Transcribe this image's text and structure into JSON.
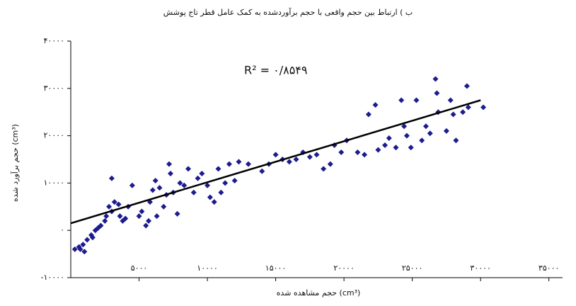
{
  "chart_data": {
    "type": "scatter",
    "title": "ب ) ارتباط بین حجم واقعی با حجم برآوردشده به کمک عامل قطر تاج پوشش",
    "x_label": "حجم مشاهده شده (cm³)",
    "y_label": "حجم برآورد شده (cm³)",
    "annotation": "R² = ۰/۸۵۴۹",
    "xlim": [
      0,
      36000
    ],
    "ylim": [
      -10000,
      40000
    ],
    "xticks": [
      {
        "value": 5000,
        "label": "۵۰۰۰"
      },
      {
        "value": 10000,
        "label": "۱۰۰۰۰"
      },
      {
        "value": 15000,
        "label": "۱۵۰۰۰"
      },
      {
        "value": 20000,
        "label": "۲۰۰۰۰"
      },
      {
        "value": 25000,
        "label": "۲۵۰۰۰"
      },
      {
        "value": 30000,
        "label": "۳۰۰۰۰"
      },
      {
        "value": 35000,
        "label": "۳۵۰۰۰"
      }
    ],
    "yticks": [
      {
        "value": -10000,
        "label": "-۱۰۰۰۰"
      },
      {
        "value": 0,
        "label": "۰"
      },
      {
        "value": 10000,
        "label": "۱۰۰۰۰"
      },
      {
        "value": 20000,
        "label": "۲۰۰۰۰"
      },
      {
        "value": 30000,
        "label": "۳۰۰۰۰"
      },
      {
        "value": 40000,
        "label": "۴۰۰۰۰"
      }
    ],
    "color": "#1c1c8f",
    "x": [
      300,
      600,
      900,
      1200,
      1500,
      1000,
      700,
      1800,
      2200,
      2500,
      2000,
      1600,
      2800,
      3000,
      3200,
      3500,
      3000,
      3600,
      4000,
      4200,
      4500,
      3800,
      2600,
      5000,
      5200,
      5500,
      5700,
      6000,
      6200,
      6500,
      6800,
      5800,
      6300,
      7000,
      7300,
      7500,
      7800,
      8000,
      8300,
      8600,
      9000,
      9300,
      9600,
      10000,
      7200,
      10200,
      10500,
      10800,
      11000,
      11300,
      11600,
      12000,
      12300,
      13000,
      14000,
      14500,
      15000,
      15500,
      16000,
      16500,
      17000,
      17500,
      18000,
      18500,
      19000,
      19300,
      19800,
      20200,
      21000,
      21500,
      21800,
      22300,
      22500,
      23000,
      23300,
      23800,
      24200,
      24400,
      24600,
      24900,
      25300,
      25700,
      26000,
      26300,
      26700,
      26800,
      26900,
      27500,
      27800,
      28000,
      28200,
      28700,
      29000,
      29100,
      30200
    ],
    "y": [
      -4000,
      -3500,
      -3000,
      -2000,
      -1000,
      -4500,
      -4000,
      0,
      1000,
      2000,
      500,
      -1500,
      5000,
      4000,
      6000,
      5500,
      11000,
      3000,
      2500,
      5000,
      9500,
      2000,
      3000,
      3000,
      4000,
      1000,
      2000,
      8500,
      10500,
      9000,
      5000,
      6000,
      3000,
      7500,
      12000,
      8000,
      3500,
      10000,
      9500,
      13000,
      8000,
      11000,
      12000,
      9500,
      14000,
      7000,
      6000,
      13000,
      8000,
      10000,
      14000,
      10500,
      14500,
      14000,
      12500,
      14000,
      16000,
      15000,
      14500,
      15000,
      16500,
      15500,
      16000,
      13000,
      14000,
      18000,
      16500,
      19000,
      16500,
      16000,
      24500,
      26500,
      17000,
      18000,
      19500,
      17500,
      27500,
      22000,
      20000,
      17500,
      27500,
      19000,
      22000,
      20500,
      32000,
      29000,
      25000,
      21000,
      27500,
      24500,
      19000,
      25000,
      30500,
      26000,
      26000
    ],
    "trendline": {
      "color": "#000000",
      "x": [
        0,
        30000
      ],
      "y": [
        1500,
        27500
      ]
    }
  }
}
